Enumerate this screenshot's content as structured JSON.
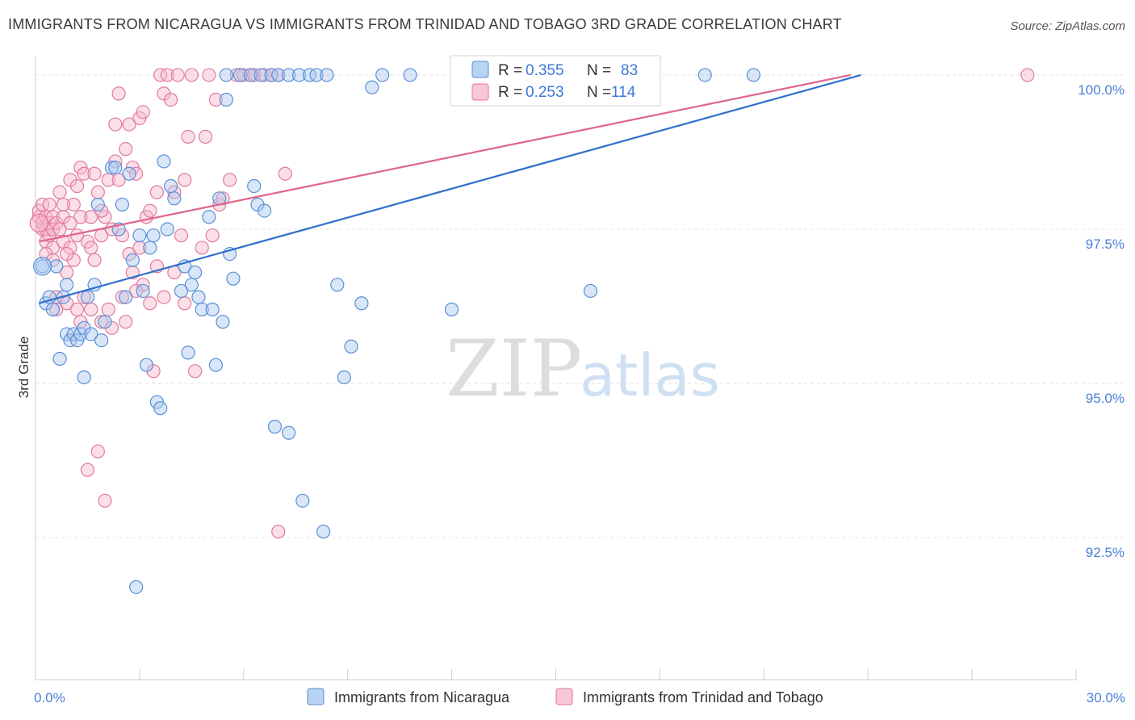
{
  "header": {
    "title": "IMMIGRANTS FROM NICARAGUA VS IMMIGRANTS FROM TRINIDAD AND TOBAGO 3RD GRADE CORRELATION CHART",
    "source": "Source: ZipAtlas.com"
  },
  "watermark": {
    "zip": "ZIP",
    "atlas": "atlas"
  },
  "legend": {
    "r_label": "R =",
    "n_label": "N =",
    "series": [
      {
        "r": "0.355",
        "n": "83"
      },
      {
        "r": "0.253",
        "n": "114"
      }
    ]
  },
  "colors": {
    "blue_fill": "#a9c8ef",
    "blue_stroke": "#5b8fd6",
    "blue_line": "#2f6fc9",
    "pink_fill": "#f6b8cc",
    "pink_stroke": "#e07a9d",
    "pink_line": "#e0648d",
    "axis_text": "#4a7fd6",
    "grid": "#e3e3e3"
  },
  "chart_data": {
    "type": "scatter",
    "title": "IMMIGRANTS FROM NICARAGUA VS IMMIGRANTS FROM TRINIDAD AND TOBAGO 3RD GRADE CORRELATION CHART",
    "xlabel": "",
    "ylabel": "3rd Grade",
    "xlim": [
      0,
      30
    ],
    "ylim": [
      90.2,
      100.3
    ],
    "x_tick_labels": [
      "0.0%",
      "30.0%"
    ],
    "y_ticks": [
      92.5,
      95.0,
      97.5,
      100.0
    ],
    "y_tick_labels": [
      "92.5%",
      "95.0%",
      "97.5%",
      "100.0%"
    ],
    "grid": true,
    "legend_position": "top-center",
    "series": [
      {
        "name": "Immigrants from Nicaragua",
        "color": "#5b8fd6",
        "trend": {
          "x": [
            0.1,
            23.8
          ],
          "y": [
            96.3,
            100.0
          ]
        },
        "points": [
          [
            0.2,
            96.9
          ],
          [
            0.3,
            96.3
          ],
          [
            0.4,
            96.4
          ],
          [
            0.5,
            96.2
          ],
          [
            0.6,
            96.9
          ],
          [
            0.7,
            95.4
          ],
          [
            0.8,
            96.4
          ],
          [
            0.9,
            95.8
          ],
          [
            0.9,
            96.6
          ],
          [
            1.0,
            95.7
          ],
          [
            1.1,
            95.8
          ],
          [
            1.2,
            95.7
          ],
          [
            1.3,
            95.8
          ],
          [
            1.4,
            95.1
          ],
          [
            1.4,
            95.9
          ],
          [
            1.5,
            96.4
          ],
          [
            1.6,
            95.8
          ],
          [
            1.7,
            96.6
          ],
          [
            1.8,
            97.9
          ],
          [
            1.9,
            95.7
          ],
          [
            2.0,
            96.0
          ],
          [
            2.2,
            98.5
          ],
          [
            2.3,
            98.5
          ],
          [
            2.4,
            97.5
          ],
          [
            2.5,
            97.9
          ],
          [
            2.6,
            96.4
          ],
          [
            2.7,
            98.4
          ],
          [
            2.8,
            97.0
          ],
          [
            2.9,
            91.7
          ],
          [
            3.0,
            97.4
          ],
          [
            3.1,
            96.5
          ],
          [
            3.2,
            95.3
          ],
          [
            3.3,
            97.2
          ],
          [
            3.4,
            97.4
          ],
          [
            3.5,
            94.7
          ],
          [
            3.6,
            94.6
          ],
          [
            3.7,
            98.6
          ],
          [
            3.8,
            97.5
          ],
          [
            3.9,
            98.2
          ],
          [
            4.0,
            98.0
          ],
          [
            4.2,
            96.5
          ],
          [
            4.3,
            96.9
          ],
          [
            4.4,
            95.5
          ],
          [
            4.5,
            96.6
          ],
          [
            4.6,
            96.8
          ],
          [
            4.7,
            96.4
          ],
          [
            4.8,
            96.2
          ],
          [
            5.0,
            97.7
          ],
          [
            5.1,
            96.2
          ],
          [
            5.2,
            95.3
          ],
          [
            5.3,
            98.0
          ],
          [
            5.4,
            96.0
          ],
          [
            5.5,
            99.6
          ],
          [
            5.6,
            97.1
          ],
          [
            5.7,
            96.7
          ],
          [
            5.5,
            100.0
          ],
          [
            5.9,
            100.0
          ],
          [
            6.2,
            100.0
          ],
          [
            6.3,
            98.2
          ],
          [
            6.4,
            97.9
          ],
          [
            6.6,
            97.8
          ],
          [
            6.5,
            100.0
          ],
          [
            6.8,
            100.0
          ],
          [
            6.9,
            94.3
          ],
          [
            7.0,
            100.0
          ],
          [
            7.3,
            100.0
          ],
          [
            7.3,
            94.2
          ],
          [
            7.6,
            100.0
          ],
          [
            7.7,
            93.1
          ],
          [
            7.9,
            100.0
          ],
          [
            8.1,
            100.0
          ],
          [
            8.4,
            100.0
          ],
          [
            8.3,
            92.6
          ],
          [
            8.7,
            96.6
          ],
          [
            8.9,
            95.1
          ],
          [
            9.1,
            95.6
          ],
          [
            9.4,
            96.3
          ],
          [
            9.7,
            99.8
          ],
          [
            10.0,
            100.0
          ],
          [
            10.8,
            100.0
          ],
          [
            12.0,
            96.2
          ],
          [
            16.0,
            96.5
          ],
          [
            19.3,
            100.0
          ],
          [
            20.7,
            100.0
          ]
        ]
      },
      {
        "name": "Immigrants from Trinidad and Tobago",
        "color": "#e07a9d",
        "trend": {
          "x": [
            0.1,
            23.5
          ],
          "y": [
            97.3,
            100.0
          ]
        },
        "points": [
          [
            0.1,
            97.7
          ],
          [
            0.1,
            97.8
          ],
          [
            0.2,
            97.5
          ],
          [
            0.2,
            97.9
          ],
          [
            0.2,
            97.6
          ],
          [
            0.3,
            97.7
          ],
          [
            0.3,
            97.5
          ],
          [
            0.3,
            97.3
          ],
          [
            0.4,
            97.6
          ],
          [
            0.4,
            97.9
          ],
          [
            0.4,
            97.4
          ],
          [
            0.5,
            97.5
          ],
          [
            0.5,
            97.7
          ],
          [
            0.5,
            97.2
          ],
          [
            0.6,
            97.6
          ],
          [
            0.6,
            96.4
          ],
          [
            0.7,
            98.1
          ],
          [
            0.7,
            97.5
          ],
          [
            0.8,
            97.3
          ],
          [
            0.8,
            97.7
          ],
          [
            0.9,
            96.3
          ],
          [
            0.9,
            96.8
          ],
          [
            1.0,
            98.3
          ],
          [
            1.0,
            97.2
          ],
          [
            1.1,
            97.9
          ],
          [
            1.1,
            97.0
          ],
          [
            1.2,
            97.4
          ],
          [
            1.2,
            96.2
          ],
          [
            1.3,
            98.5
          ],
          [
            1.3,
            97.7
          ],
          [
            1.4,
            98.4
          ],
          [
            1.4,
            96.4
          ],
          [
            1.5,
            97.3
          ],
          [
            1.5,
            93.6
          ],
          [
            1.6,
            97.7
          ],
          [
            1.6,
            96.2
          ],
          [
            1.7,
            98.4
          ],
          [
            1.7,
            97.0
          ],
          [
            1.8,
            98.1
          ],
          [
            1.8,
            93.9
          ],
          [
            1.9,
            97.4
          ],
          [
            1.9,
            96.0
          ],
          [
            2.0,
            97.7
          ],
          [
            2.0,
            93.1
          ],
          [
            2.1,
            98.3
          ],
          [
            2.1,
            96.2
          ],
          [
            2.2,
            97.5
          ],
          [
            2.2,
            95.9
          ],
          [
            2.3,
            99.2
          ],
          [
            2.3,
            98.6
          ],
          [
            2.4,
            99.7
          ],
          [
            2.4,
            98.3
          ],
          [
            2.5,
            96.4
          ],
          [
            2.6,
            98.8
          ],
          [
            2.6,
            96.0
          ],
          [
            2.7,
            99.2
          ],
          [
            2.7,
            97.1
          ],
          [
            2.8,
            98.5
          ],
          [
            2.8,
            96.8
          ],
          [
            2.9,
            98.4
          ],
          [
            3.0,
            99.3
          ],
          [
            3.0,
            97.2
          ],
          [
            3.1,
            99.4
          ],
          [
            3.1,
            96.6
          ],
          [
            3.2,
            97.7
          ],
          [
            3.3,
            97.8
          ],
          [
            3.3,
            96.3
          ],
          [
            3.4,
            95.2
          ],
          [
            3.5,
            98.1
          ],
          [
            3.5,
            96.9
          ],
          [
            3.6,
            100.0
          ],
          [
            3.7,
            99.7
          ],
          [
            3.8,
            100.0
          ],
          [
            3.9,
            99.6
          ],
          [
            4.0,
            98.1
          ],
          [
            4.0,
            96.8
          ],
          [
            4.1,
            100.0
          ],
          [
            4.2,
            97.4
          ],
          [
            4.3,
            98.3
          ],
          [
            4.3,
            96.3
          ],
          [
            4.4,
            99.0
          ],
          [
            4.5,
            100.0
          ],
          [
            4.6,
            95.2
          ],
          [
            4.8,
            97.2
          ],
          [
            4.9,
            99.0
          ],
          [
            5.0,
            100.0
          ],
          [
            5.1,
            97.4
          ],
          [
            5.2,
            99.6
          ],
          [
            5.3,
            97.9
          ],
          [
            5.4,
            98.0
          ],
          [
            5.6,
            98.3
          ],
          [
            5.8,
            100.0
          ],
          [
            6.0,
            100.0
          ],
          [
            6.2,
            100.0
          ],
          [
            6.3,
            100.0
          ],
          [
            6.6,
            100.0
          ],
          [
            6.8,
            100.0
          ],
          [
            7.0,
            100.0
          ],
          [
            7.2,
            98.4
          ],
          [
            7.0,
            92.6
          ],
          [
            0.6,
            96.2
          ],
          [
            0.9,
            97.1
          ],
          [
            1.3,
            96.0
          ],
          [
            2.5,
            97.4
          ],
          [
            1.0,
            97.6
          ],
          [
            1.6,
            97.2
          ],
          [
            0.3,
            97.1
          ],
          [
            0.8,
            97.9
          ],
          [
            2.9,
            96.5
          ],
          [
            1.2,
            98.2
          ],
          [
            3.7,
            96.4
          ],
          [
            28.6,
            100.0
          ],
          [
            0.5,
            97.0
          ],
          [
            1.9,
            97.8
          ]
        ]
      }
    ]
  },
  "bottom_legend": [
    {
      "label": "Immigrants from Nicaragua"
    },
    {
      "label": "Immigrants from Trinidad and Tobago"
    }
  ]
}
